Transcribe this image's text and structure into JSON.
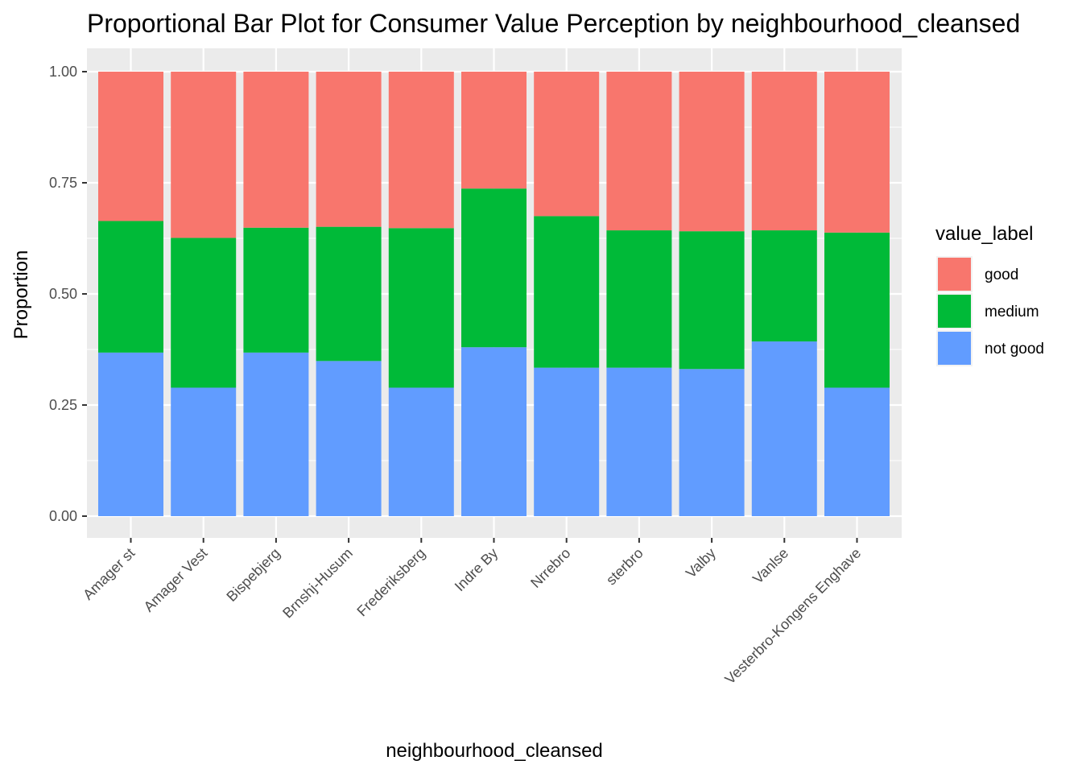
{
  "chart_data": {
    "type": "bar",
    "stacked": true,
    "title": "Proportional Bar Plot for Consumer Value Perception by neighbourhood_cleansed",
    "xlabel": "neighbourhood_cleansed",
    "ylabel": "Proportion",
    "ylim": [
      0,
      1
    ],
    "yticks": [
      "0.00",
      "0.25",
      "0.50",
      "0.75",
      "1.00"
    ],
    "ytick_values": [
      0,
      0.25,
      0.5,
      0.75,
      1.0
    ],
    "grid": true,
    "legend": {
      "title": "value_label",
      "position": "right"
    },
    "categories": [
      "Amager st",
      "Amager Vest",
      "Bispebjerg",
      "Brnshj-Husum",
      "Frederiksberg",
      "Indre By",
      "Nrrebro",
      "sterbro",
      "Valby",
      "Vanlse",
      "Vesterbro-Kongens Enghave"
    ],
    "series": [
      {
        "name": "not good",
        "color": "#619CFF",
        "values": [
          0.368,
          0.289,
          0.368,
          0.349,
          0.289,
          0.38,
          0.334,
          0.334,
          0.331,
          0.393,
          0.289
        ]
      },
      {
        "name": "medium",
        "color": "#00BA38",
        "values": [
          0.296,
          0.337,
          0.281,
          0.302,
          0.359,
          0.357,
          0.341,
          0.309,
          0.31,
          0.25,
          0.349
        ]
      },
      {
        "name": "good",
        "color": "#F8766D",
        "values": [
          0.336,
          0.374,
          0.351,
          0.349,
          0.352,
          0.263,
          0.325,
          0.357,
          0.359,
          0.357,
          0.362
        ]
      }
    ],
    "legend_order": [
      "good",
      "medium",
      "not good"
    ]
  }
}
